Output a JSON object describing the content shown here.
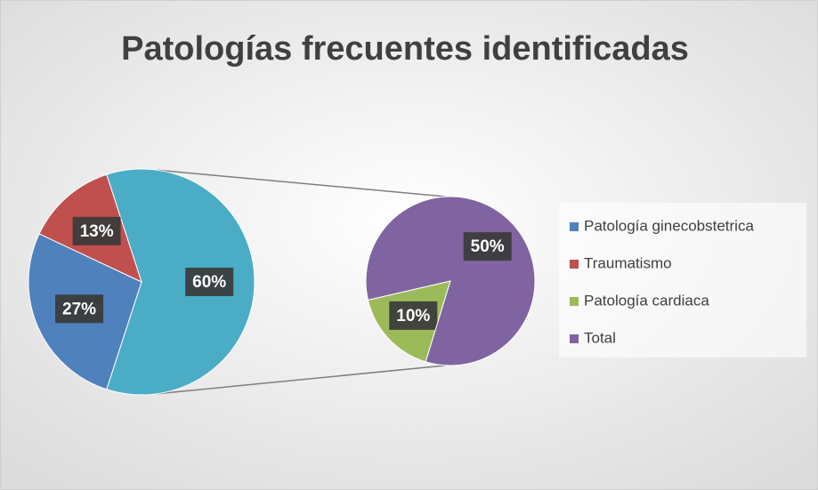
{
  "chart_data": {
    "type": "pie-of-pie",
    "title": "Patologías frecuentes identificadas",
    "categories": [
      "Patología ginecobstetrica",
      "Traumatismo",
      "Patología cardiaca",
      "Total"
    ],
    "values": [
      27,
      13,
      10,
      50
    ],
    "value_labels": [
      "27%",
      "13%",
      "10%",
      "50%"
    ],
    "colors": [
      "#4f81bd",
      "#c0504d",
      "#9bbb59",
      "#8064a2"
    ],
    "secondary_count": 2,
    "other": {
      "value": 60,
      "value_label": "60%",
      "color": "#4bacc6"
    },
    "legend": "right"
  }
}
